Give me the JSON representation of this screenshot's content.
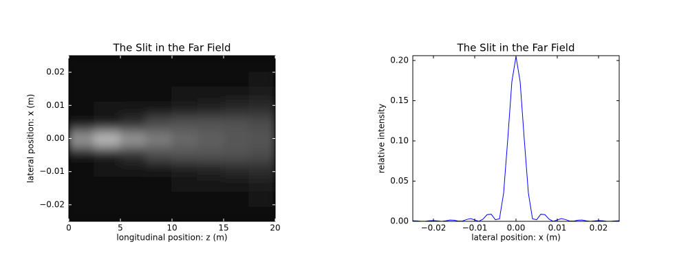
{
  "chart_data": [
    {
      "type": "heatmap",
      "title": "The Slit in the Far Field",
      "x_label": "longitudinal position: z (m)",
      "y_label": "lateral position: x (m)",
      "colormap": "gray",
      "zlim": [
        0,
        1
      ],
      "x": [
        1.25,
        3.75,
        6.25,
        8.75,
        11.25,
        13.75,
        16.25,
        18.75
      ],
      "y": [
        -0.0227,
        -0.0182,
        -0.0136,
        -0.0091,
        -0.0045,
        0,
        0.0045,
        0.0091,
        0.0136,
        0.0182,
        0.0227
      ],
      "z": [
        [
          0.06,
          0.06,
          0.06,
          0.06,
          0.06,
          0.06,
          0.06,
          0.06
        ],
        [
          0.06,
          0.06,
          0.06,
          0.06,
          0.06,
          0.06,
          0.06,
          0.07
        ],
        [
          0.06,
          0.06,
          0.06,
          0.06,
          0.07,
          0.07,
          0.08,
          0.1
        ],
        [
          0.06,
          0.07,
          0.07,
          0.08,
          0.1,
          0.14,
          0.16,
          0.18
        ],
        [
          0.08,
          0.1,
          0.2,
          0.3,
          0.33,
          0.33,
          0.32,
          0.3
        ],
        [
          0.6,
          0.75,
          0.6,
          0.5,
          0.42,
          0.38,
          0.35,
          0.33
        ],
        [
          0.08,
          0.1,
          0.2,
          0.3,
          0.33,
          0.33,
          0.32,
          0.3
        ],
        [
          0.06,
          0.07,
          0.07,
          0.08,
          0.1,
          0.14,
          0.16,
          0.18
        ],
        [
          0.06,
          0.06,
          0.06,
          0.06,
          0.07,
          0.07,
          0.08,
          0.1
        ],
        [
          0.06,
          0.06,
          0.06,
          0.06,
          0.06,
          0.06,
          0.06,
          0.07
        ],
        [
          0.06,
          0.06,
          0.06,
          0.06,
          0.06,
          0.06,
          0.06,
          0.06
        ]
      ],
      "xlim": [
        0,
        20
      ],
      "xticks": [
        0,
        5,
        10,
        15,
        20
      ],
      "ylim": [
        -0.025,
        0.025
      ],
      "yticks": [
        {
          "value": -0.02,
          "label": "−0.02"
        },
        {
          "value": -0.01,
          "label": "−0.01"
        },
        {
          "value": 0,
          "label": "0.00"
        },
        {
          "value": 0.01,
          "label": "0.01"
        },
        {
          "value": 0.02,
          "label": "0.02"
        }
      ]
    },
    {
      "type": "line",
      "title": "The Slit in the Far Field",
      "x_label": "lateral position: x (m)",
      "y_label": "relative intensity",
      "x": [
        -0.025,
        -0.024,
        -0.023,
        -0.022,
        -0.021,
        -0.02,
        -0.019,
        -0.018,
        -0.017,
        -0.016,
        -0.015,
        -0.014,
        -0.013,
        -0.012,
        -0.011,
        -0.01,
        -0.009,
        -0.008,
        -0.007,
        -0.006,
        -0.005,
        -0.004,
        -0.003,
        -0.002,
        -0.001,
        0,
        0.001,
        0.002,
        0.003,
        0.004,
        0.005,
        0.006,
        0.007,
        0.008,
        0.009,
        0.01,
        0.011,
        0.012,
        0.013,
        0.014,
        0.015,
        0.016,
        0.017,
        0.018,
        0.019,
        0.02,
        0.021,
        0.022,
        0.023,
        0.024,
        0.025
      ],
      "series": [
        {
          "color": "#0000ff",
          "values": [
            0.0007,
            0.0005,
            0.0001,
            0.0001,
            0.0007,
            0.001,
            0.0005,
            0,
            0.0006,
            0.0016,
            0.0014,
            0.0003,
            0.0003,
            0.0022,
            0.0034,
            0.0017,
            0,
            0.0027,
            0.0083,
            0.0088,
            0.002,
            0.0031,
            0.0351,
            0.102,
            0.1738,
            0.205,
            0.1738,
            0.102,
            0.0351,
            0.0031,
            0.002,
            0.0088,
            0.0083,
            0.0027,
            0,
            0.0017,
            0.0034,
            0.0022,
            0.0003,
            0.0003,
            0.0014,
            0.0016,
            0.0006,
            0,
            0.0005,
            0.001,
            0.0007,
            0.0001,
            0.0001,
            0.0005,
            0.0007
          ]
        }
      ],
      "xlim": [
        -0.025,
        0.025
      ],
      "xticks": [
        {
          "value": -0.02,
          "label": "−0.02"
        },
        {
          "value": -0.01,
          "label": "−0.01"
        },
        {
          "value": 0,
          "label": "0.00"
        },
        {
          "value": 0.01,
          "label": "0.01"
        },
        {
          "value": 0.02,
          "label": "0.02"
        }
      ],
      "ylim": [
        0,
        0.206
      ],
      "yticks": [
        {
          "value": 0,
          "label": "0.00"
        },
        {
          "value": 0.05,
          "label": "0.05"
        },
        {
          "value": 0.1,
          "label": "0.10"
        },
        {
          "value": 0.15,
          "label": "0.15"
        },
        {
          "value": 0.2,
          "label": "0.20"
        }
      ]
    }
  ]
}
